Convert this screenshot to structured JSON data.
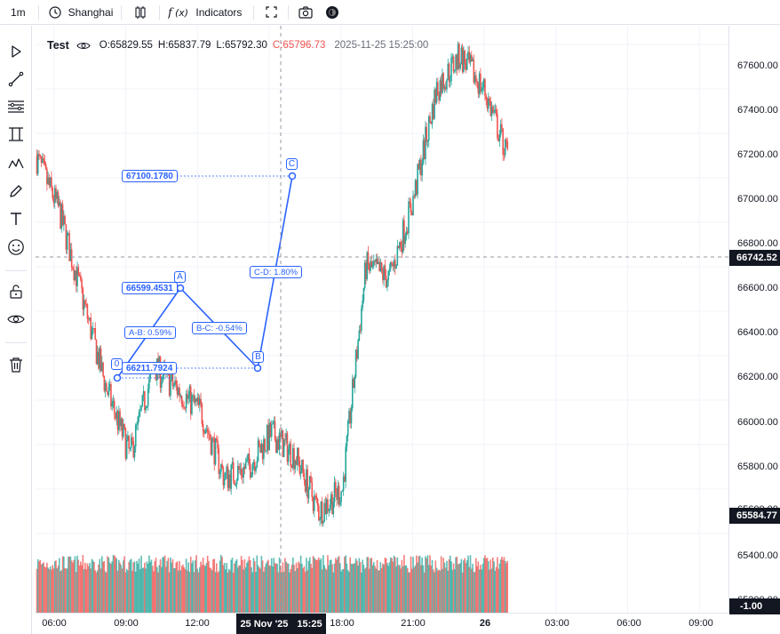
{
  "toolbar": {
    "interval": "1m",
    "timezone": "Shanghai",
    "indicators_label": "Indicators",
    "icons": [
      "clock-icon",
      "candles-icon",
      "function-icon",
      "fullscreen-icon",
      "camera-icon",
      "theme-icon"
    ]
  },
  "sidebar": {
    "tools": [
      "cursor-icon",
      "trendline-icon",
      "fib-icon",
      "channel-icon",
      "pattern-icon",
      "brush-icon",
      "text-icon",
      "emoji-icon",
      "lock-icon",
      "eye-icon",
      "trash-icon"
    ]
  },
  "legend": {
    "symbol": "Test",
    "open_label": "O:",
    "open": "65829.55",
    "high_label": "H:",
    "high": "65837.79",
    "low_label": "L:",
    "low": "65792.30",
    "close_label": "C:",
    "close": "65796.73",
    "timestamp": "2025-11-25 15:25:00"
  },
  "price_axis": {
    "ticks": [
      "67600.00",
      "67400.00",
      "67200.00",
      "67000.00",
      "66800.00",
      "66600.00",
      "66400.00",
      "66200.00",
      "66000.00",
      "65800.00",
      "65600.00",
      "65400.00",
      "65200.00"
    ],
    "crosshair_price": "66742.52",
    "last_price": "65584.77",
    "volume_label": "-1.00"
  },
  "time_axis": {
    "ticks": [
      "06:00",
      "09:00",
      "12:00",
      "18:00",
      "21:00",
      "26",
      "03:00",
      "06:00",
      "09:00"
    ],
    "crosshair_date": "25 Nov '25",
    "crosshair_time": "15:25"
  },
  "pattern": {
    "points": {
      "p0": "0",
      "pA": "A",
      "pB": "B",
      "pC": "C"
    },
    "price_labels": {
      "p0": "66211.7924",
      "pA": "66599.4531",
      "pC": "67100.1780"
    },
    "leg_labels": {
      "ab": "A-B: 0.59%",
      "bc": "B-C: -0.54%",
      "cd": "C-D: 1.80%"
    }
  },
  "colors": {
    "up": "#26a69a",
    "down": "#ef5350",
    "drawing": "#2962ff",
    "axis_label": "#131722"
  },
  "chart_data": {
    "type": "candlestick",
    "title": "",
    "xlabel": "",
    "ylabel": "",
    "ylim": [
      65200,
      67700
    ],
    "x": [
      "05:00",
      "06:00",
      "07:00",
      "08:00",
      "09:00",
      "10:00",
      "11:00",
      "12:00",
      "13:00",
      "14:00",
      "15:00",
      "16:00",
      "17:00",
      "18:00",
      "19:00",
      "20:00",
      "21:00",
      "22:00",
      "23:00",
      "00:00",
      "01:00"
    ],
    "series": [
      {
        "values": [
          67100,
          66850,
          66450,
          66050,
          65750,
          66150,
          66050,
          65950,
          65650,
          65700,
          65850,
          65750,
          65500,
          65600,
          66600,
          66550,
          66900,
          67400,
          67550,
          67400,
          67100
        ]
      }
    ]
  }
}
